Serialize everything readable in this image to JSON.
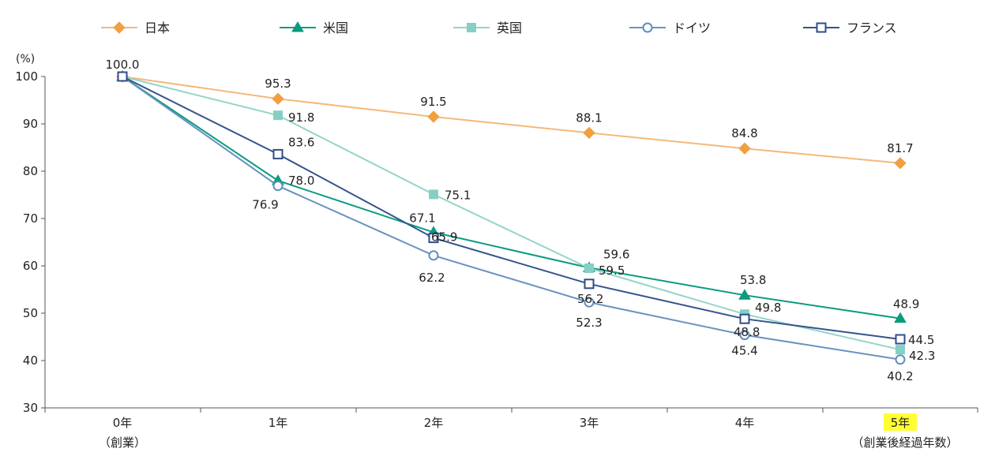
{
  "chart_data": {
    "type": "line",
    "unit_label": "(%)",
    "ylim": [
      30,
      100
    ],
    "yticks": [
      30,
      40,
      50,
      60,
      70,
      80,
      90,
      100
    ],
    "grid": false,
    "legend_position": "top",
    "categories": [
      "0年",
      "1年",
      "2年",
      "3年",
      "4年",
      "5年"
    ],
    "category_sublabels": [
      "（創業）",
      "",
      "",
      "",
      "",
      "（創業後経過年数）"
    ],
    "highlight_category_index": 5,
    "highlight_color": "#ffff33",
    "series": [
      {
        "name": "日本",
        "marker": "diamond",
        "filled": true,
        "color": "#f0a040",
        "line_color": "#f5b87a",
        "values": [
          100.0,
          95.3,
          91.5,
          88.1,
          84.8,
          81.7
        ],
        "labels": [
          "100.0",
          "95.3",
          "91.5",
          "88.1",
          "84.8",
          "81.7"
        ]
      },
      {
        "name": "米国",
        "marker": "triangle",
        "filled": true,
        "color": "#0a9b7d",
        "line_color": "#0a9b7d",
        "values": [
          100.0,
          78.0,
          67.1,
          59.6,
          53.8,
          48.9
        ],
        "labels": [
          "",
          "78.0",
          "67.1",
          "59.6",
          "53.8",
          "48.9"
        ]
      },
      {
        "name": "英国",
        "marker": "square",
        "filled": true,
        "color": "#86cfc4",
        "line_color": "#94d4ca",
        "values": [
          100.0,
          91.8,
          75.1,
          59.5,
          49.8,
          42.3
        ],
        "labels": [
          "",
          "91.8",
          "75.1",
          "59.5",
          "49.8",
          "42.3"
        ]
      },
      {
        "name": "ドイツ",
        "marker": "circle",
        "filled": false,
        "color": "#5f8dbd",
        "line_color": "#6a92c0",
        "values": [
          100.0,
          76.9,
          62.2,
          52.3,
          45.4,
          40.2
        ],
        "labels": [
          "",
          "76.9",
          "62.2",
          "52.3",
          "45.4",
          "40.2"
        ]
      },
      {
        "name": "フランス",
        "marker": "square",
        "filled": false,
        "color": "#2f4d8a",
        "line_color": "#34538e",
        "values": [
          100.0,
          83.6,
          65.9,
          56.2,
          48.8,
          44.5
        ],
        "labels": [
          "",
          "83.6",
          "65.9",
          "56.2",
          "48.8",
          "44.5"
        ]
      }
    ]
  }
}
